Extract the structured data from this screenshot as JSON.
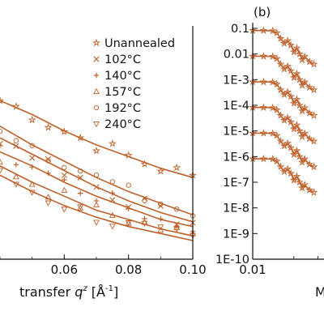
{
  "chart_data": [
    {
      "type": "scatter",
      "panel_label": "",
      "xlabel_prefix": "transfer",
      "xlabel_var": "q",
      "xlabel_sup": "z",
      "xlabel_unit_open": " [Å",
      "xlabel_unit_sup": "-1",
      "xlabel_unit_close": "]",
      "xlim": [
        0.04,
        0.1
      ],
      "xticks": [
        "0.06",
        "0.08",
        "0.10"
      ],
      "xtick_values": [
        0.06,
        0.08,
        0.1
      ],
      "legend_position": "top-right",
      "series": [
        {
          "name": "Unannealed",
          "marker": "star",
          "x": [
            0.04,
            0.05,
            0.06,
            0.07,
            0.08,
            0.09,
            0.1
          ],
          "y": [
            0.68,
            0.62,
            0.55,
            0.49,
            0.44,
            0.39,
            0.35
          ]
        },
        {
          "name": "102°C",
          "marker": "x",
          "x": [
            0.04,
            0.05,
            0.06,
            0.07,
            0.08,
            0.09,
            0.1
          ],
          "y": [
            0.52,
            0.45,
            0.38,
            0.31,
            0.25,
            0.2,
            0.16
          ]
        },
        {
          "name": "140°C",
          "marker": "plus",
          "x": [
            0.04,
            0.05,
            0.06,
            0.07,
            0.08,
            0.09,
            0.1
          ],
          "y": [
            0.46,
            0.4,
            0.33,
            0.27,
            0.22,
            0.17,
            0.14
          ]
        },
        {
          "name": "157°C",
          "marker": "triangle-up",
          "x": [
            0.04,
            0.05,
            0.06,
            0.07,
            0.08,
            0.09,
            0.1
          ],
          "y": [
            0.4,
            0.33,
            0.27,
            0.21,
            0.17,
            0.13,
            0.1
          ]
        },
        {
          "name": "192°C",
          "marker": "circle",
          "x": [
            0.04,
            0.05,
            0.06,
            0.07,
            0.08,
            0.09,
            0.1
          ],
          "y": [
            0.57,
            0.49,
            0.42,
            0.35,
            0.29,
            0.24,
            0.19
          ]
        },
        {
          "name": "240°C",
          "marker": "triangle-down",
          "x": [
            0.04,
            0.05,
            0.06,
            0.07,
            0.08,
            0.09,
            0.1
          ],
          "y": [
            0.36,
            0.29,
            0.23,
            0.18,
            0.14,
            0.11,
            0.08
          ]
        }
      ]
    },
    {
      "type": "line",
      "panel_label": "(b)",
      "xlabel": "M",
      "xscale": "log",
      "yscale": "log",
      "xlim": [
        0.01,
        0.05
      ],
      "xticks": [
        "0.01"
      ],
      "xtick_values": [
        0.01
      ],
      "ylim": [
        1e-10,
        0.1
      ],
      "yticks": [
        "0.1",
        "0.01",
        "1E-3",
        "1E-4",
        "1E-5",
        "1E-6",
        "1E-7",
        "1E-8",
        "1E-9",
        "1E-10"
      ],
      "ytick_values": [
        0.1,
        0.01,
        0.001,
        0.0001,
        1e-05,
        1e-06,
        1e-07,
        1e-08,
        1e-09,
        1e-10
      ],
      "series": [
        {
          "x": [
            0.01,
            0.012,
            0.014,
            0.015,
            0.016,
            0.017,
            0.018,
            0.019,
            0.02,
            0.021,
            0.022,
            0.023,
            0.024,
            0.026,
            0.028
          ],
          "y": [
            0.082,
            0.082,
            0.08,
            0.066,
            0.04,
            0.026,
            0.033,
            0.022,
            0.012,
            0.017,
            0.01,
            0.006,
            0.008,
            0.005,
            0.004
          ]
        },
        {
          "x": [
            0.01,
            0.012,
            0.014,
            0.015,
            0.016,
            0.017,
            0.018,
            0.019,
            0.02,
            0.021,
            0.022,
            0.023,
            0.024,
            0.026,
            0.028
          ],
          "y": [
            0.0082,
            0.0082,
            0.008,
            0.0066,
            0.004,
            0.0026,
            0.0033,
            0.0022,
            0.0012,
            0.0017,
            0.001,
            0.0006,
            0.0008,
            0.0005,
            0.0004
          ]
        },
        {
          "x": [
            0.01,
            0.012,
            0.014,
            0.015,
            0.016,
            0.017,
            0.018,
            0.019,
            0.02,
            0.021,
            0.022,
            0.023,
            0.024,
            0.026,
            0.028
          ],
          "y": [
            0.00082,
            0.00082,
            0.0008,
            0.00066,
            0.0004,
            0.00026,
            0.00033,
            0.00022,
            0.00012,
            0.00017,
            0.0001,
            6e-05,
            8e-05,
            5e-05,
            4e-05
          ]
        },
        {
          "x": [
            0.01,
            0.012,
            0.014,
            0.015,
            0.016,
            0.017,
            0.018,
            0.019,
            0.02,
            0.021,
            0.022,
            0.023,
            0.024,
            0.026,
            0.028
          ],
          "y": [
            8.2e-05,
            8.2e-05,
            8e-05,
            6.6e-05,
            4e-05,
            2.6e-05,
            3.3e-05,
            2.2e-05,
            1.2e-05,
            1.7e-05,
            1e-05,
            6e-06,
            8e-06,
            5e-06,
            4e-06
          ]
        },
        {
          "x": [
            0.01,
            0.012,
            0.014,
            0.015,
            0.016,
            0.017,
            0.018,
            0.019,
            0.02,
            0.021,
            0.022,
            0.023,
            0.024,
            0.026,
            0.028
          ],
          "y": [
            8.2e-06,
            8.2e-06,
            8e-06,
            6.6e-06,
            4e-06,
            2.6e-06,
            3.3e-06,
            2.2e-06,
            1.2e-06,
            1.7e-06,
            1e-06,
            6e-07,
            8e-07,
            5e-07,
            4e-07
          ]
        },
        {
          "x": [
            0.01,
            0.012,
            0.014,
            0.015,
            0.016,
            0.017,
            0.018,
            0.019,
            0.02,
            0.021,
            0.022,
            0.023,
            0.024,
            0.026,
            0.028
          ],
          "y": [
            8.2e-07,
            8.2e-07,
            8e-07,
            6.6e-07,
            4e-07,
            2.6e-07,
            3.3e-07,
            2.2e-07,
            1.2e-07,
            1.7e-07,
            1e-07,
            6e-08,
            8e-08,
            5e-08,
            4e-08
          ]
        }
      ]
    }
  ],
  "colors": {
    "data": "#c0612b",
    "axis": "#111111"
  }
}
